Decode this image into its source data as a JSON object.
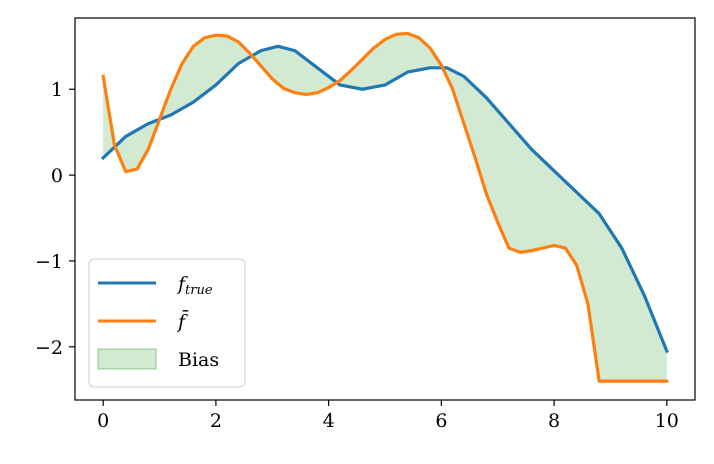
{
  "chart_data": {
    "type": "line",
    "title": "",
    "xlabel": "",
    "ylabel": "",
    "xlim": [
      -0.5,
      10.5
    ],
    "ylim": [
      -2.62,
      1.83
    ],
    "xticks": [
      0,
      2,
      4,
      6,
      8,
      10
    ],
    "xtick_labels": [
      "0",
      "2",
      "4",
      "6",
      "8",
      "10"
    ],
    "yticks": [
      1,
      0,
      -1,
      -2
    ],
    "ytick_labels": [
      "1",
      "0",
      "−1",
      "−2"
    ],
    "grid": false,
    "legend_position": "lower-left",
    "series": [
      {
        "name": "f_true",
        "legend_main": "f",
        "legend_sub": "true",
        "color": "#1f77b4",
        "x": [
          0,
          0.4,
          0.8,
          1.2,
          1.6,
          2.0,
          2.4,
          2.8,
          3.1,
          3.4,
          3.8,
          4.2,
          4.6,
          5.0,
          5.4,
          5.8,
          6.1,
          6.4,
          6.8,
          7.2,
          7.6,
          8.0,
          8.4,
          8.8,
          9.2,
          9.6,
          10.0
        ],
        "y": [
          0.2,
          0.45,
          0.6,
          0.7,
          0.85,
          1.05,
          1.3,
          1.45,
          1.5,
          1.45,
          1.25,
          1.05,
          1.0,
          1.05,
          1.2,
          1.25,
          1.25,
          1.15,
          0.9,
          0.6,
          0.3,
          0.05,
          -0.2,
          -0.45,
          -0.85,
          -1.4,
          -2.05
        ]
      },
      {
        "name": "f_bar",
        "legend_main": "f̄",
        "color": "#ff7f0e",
        "x": [
          0,
          0.2,
          0.4,
          0.6,
          0.8,
          1.0,
          1.2,
          1.4,
          1.6,
          1.8,
          2.0,
          2.2,
          2.4,
          2.6,
          2.8,
          3.0,
          3.2,
          3.4,
          3.6,
          3.8,
          4.0,
          4.2,
          4.4,
          4.6,
          4.8,
          5.0,
          5.2,
          5.4,
          5.6,
          5.8,
          6.0,
          6.2,
          6.4,
          6.6,
          6.8,
          7.0,
          7.2,
          7.4,
          7.6,
          7.8,
          8.0,
          8.2,
          8.4,
          8.6,
          8.8,
          9.0,
          9.2,
          9.4,
          9.6,
          9.8,
          10.0
        ],
        "y": [
          1.15,
          0.35,
          0.04,
          0.07,
          0.3,
          0.65,
          1.0,
          1.3,
          1.5,
          1.6,
          1.63,
          1.62,
          1.55,
          1.42,
          1.27,
          1.12,
          1.01,
          0.96,
          0.94,
          0.96,
          1.02,
          1.1,
          1.22,
          1.35,
          1.48,
          1.58,
          1.64,
          1.65,
          1.6,
          1.48,
          1.28,
          1.0,
          0.6,
          0.2,
          -0.22,
          -0.55,
          -0.85,
          -0.9,
          -0.88,
          -0.85,
          -0.82,
          -0.85,
          -1.05,
          -1.5,
          -2.4,
          -2.4,
          -2.4,
          -2.4,
          -2.4,
          -2.4,
          -2.4
        ]
      }
    ],
    "fill": {
      "name": "Bias",
      "color": "#2ca02c",
      "opacity": 0.22
    }
  }
}
